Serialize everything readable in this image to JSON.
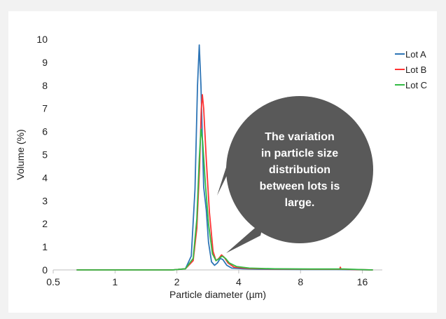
{
  "chart_data": {
    "type": "line",
    "title": "",
    "xlabel": "Particle diameter (µm)",
    "ylabel": "Volume (%)",
    "x_scale": "log2",
    "xlim": [
      0.5,
      20
    ],
    "ylim": [
      0,
      10
    ],
    "x_ticks": [
      0.5,
      1,
      2,
      4,
      8,
      16
    ],
    "x_tick_labels": [
      "0.5",
      "1",
      "2",
      "4",
      "8",
      "16"
    ],
    "y_ticks": [
      0,
      1,
      2,
      3,
      4,
      5,
      6,
      7,
      8,
      9,
      10
    ],
    "y_tick_labels": [
      "0",
      "1",
      "2",
      "3",
      "4",
      "5",
      "6",
      "7",
      "8",
      "9",
      "10"
    ],
    "grid": false,
    "legend_position": "top-right",
    "series": [
      {
        "name": "Lot A",
        "color": "#2e75b6",
        "points": [
          [
            0.65,
            0
          ],
          [
            1.9,
            0
          ],
          [
            2.2,
            0.05
          ],
          [
            2.35,
            0.6
          ],
          [
            2.45,
            3.5
          ],
          [
            2.52,
            8.0
          ],
          [
            2.57,
            9.75
          ],
          [
            2.62,
            8.0
          ],
          [
            2.7,
            3.6
          ],
          [
            2.78,
            2.6
          ],
          [
            2.85,
            1.2
          ],
          [
            2.95,
            0.35
          ],
          [
            3.05,
            0.2
          ],
          [
            3.15,
            0.3
          ],
          [
            3.25,
            0.5
          ],
          [
            3.35,
            0.45
          ],
          [
            3.5,
            0.2
          ],
          [
            3.7,
            0.08
          ],
          [
            4.2,
            0.05
          ],
          [
            5,
            0.03
          ],
          [
            8,
            0.02
          ],
          [
            12,
            0.02
          ],
          [
            18,
            0
          ]
        ]
      },
      {
        "name": "Lot B",
        "color": "#ff3333",
        "points": [
          [
            0.65,
            0
          ],
          [
            1.9,
            0
          ],
          [
            2.2,
            0.05
          ],
          [
            2.4,
            0.4
          ],
          [
            2.5,
            1.8
          ],
          [
            2.58,
            4.5
          ],
          [
            2.63,
            7.0
          ],
          [
            2.66,
            7.6
          ],
          [
            2.7,
            7.0
          ],
          [
            2.78,
            4.8
          ],
          [
            2.88,
            2.5
          ],
          [
            3.0,
            0.8
          ],
          [
            3.1,
            0.4
          ],
          [
            3.2,
            0.5
          ],
          [
            3.3,
            0.65
          ],
          [
            3.4,
            0.55
          ],
          [
            3.55,
            0.3
          ],
          [
            3.8,
            0.12
          ],
          [
            4.5,
            0.06
          ],
          [
            6,
            0.04
          ],
          [
            9,
            0.03
          ],
          [
            12.4,
            0.03
          ],
          [
            12.5,
            0.12
          ],
          [
            12.6,
            0.03
          ],
          [
            18,
            0
          ]
        ]
      },
      {
        "name": "Lot C",
        "color": "#33bb44",
        "points": [
          [
            0.65,
            0
          ],
          [
            1.9,
            0
          ],
          [
            2.2,
            0.05
          ],
          [
            2.4,
            0.5
          ],
          [
            2.5,
            2.2
          ],
          [
            2.57,
            4.8
          ],
          [
            2.62,
            6.1
          ],
          [
            2.67,
            5.6
          ],
          [
            2.75,
            3.8
          ],
          [
            2.85,
            2.0
          ],
          [
            2.98,
            0.7
          ],
          [
            3.1,
            0.4
          ],
          [
            3.22,
            0.5
          ],
          [
            3.32,
            0.6
          ],
          [
            3.45,
            0.5
          ],
          [
            3.6,
            0.3
          ],
          [
            3.9,
            0.15
          ],
          [
            4.5,
            0.08
          ],
          [
            6,
            0.05
          ],
          [
            9,
            0.04
          ],
          [
            13,
            0.04
          ],
          [
            18,
            0
          ]
        ]
      }
    ],
    "annotation": {
      "lines": [
        "The variation",
        "in particle size",
        "distribution",
        "between lots is",
        "large."
      ],
      "style": "speech-bubble",
      "fill": "#595959",
      "text_color": "#ffffff"
    }
  }
}
